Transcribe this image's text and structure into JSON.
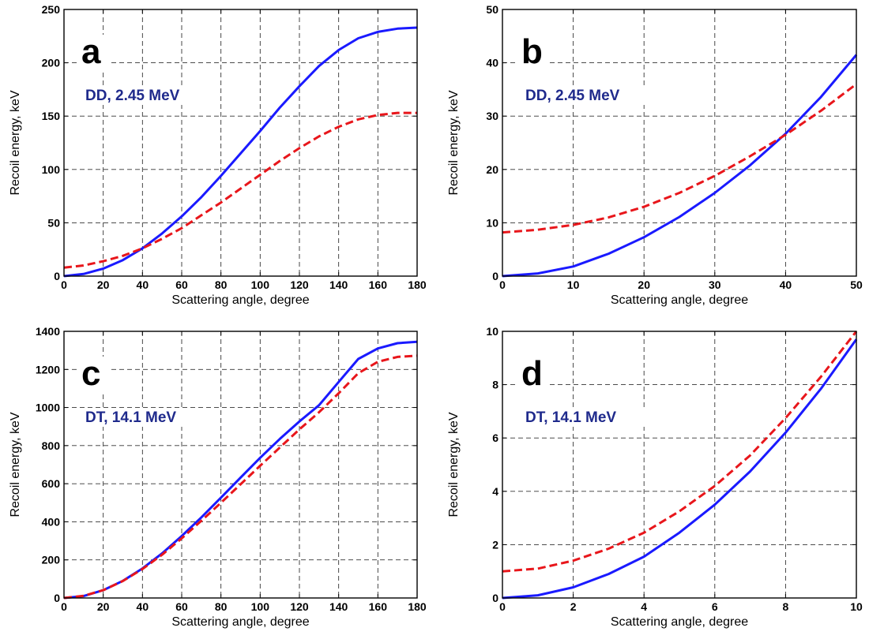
{
  "chart_data": [
    {
      "type": "line",
      "panel": "a",
      "annotation": "DD, 2.45 MeV",
      "xlabel": "Scattering angle, degree",
      "ylabel": "Recoil energy, keV",
      "xlim": [
        0,
        180
      ],
      "ylim": [
        0,
        250
      ],
      "xticks": [
        "0",
        "20",
        "40",
        "60",
        "80",
        "100",
        "120",
        "140",
        "160",
        "180"
      ],
      "yticks": [
        "0",
        "50",
        "100",
        "150",
        "200",
        "250"
      ],
      "grid": true,
      "series": [
        {
          "style": "solid",
          "color": "#1a1aff",
          "x": [
            0,
            10,
            20,
            30,
            40,
            50,
            60,
            70,
            80,
            90,
            100,
            110,
            120,
            130,
            140,
            150,
            160,
            170,
            180
          ],
          "y": [
            0,
            2,
            7,
            15,
            26,
            40,
            56,
            74,
            94,
            115,
            136,
            158,
            178,
            197,
            212,
            223,
            229,
            232,
            233
          ]
        },
        {
          "style": "dashed",
          "color": "#e8161b",
          "x": [
            0,
            10,
            20,
            30,
            40,
            50,
            60,
            70,
            80,
            90,
            100,
            110,
            120,
            130,
            140,
            150,
            160,
            170,
            180
          ],
          "y": [
            8,
            10,
            14,
            19,
            26,
            35,
            45,
            57,
            69,
            82,
            95,
            108,
            120,
            131,
            140,
            147,
            151,
            153,
            153
          ]
        }
      ]
    },
    {
      "type": "line",
      "panel": "b",
      "annotation": "DD, 2.45 MeV",
      "xlabel": "Scattering angle, degree",
      "ylabel": "Recoil energy, keV",
      "xlim": [
        0,
        50
      ],
      "ylim": [
        0,
        50
      ],
      "xticks": [
        "0",
        "10",
        "20",
        "30",
        "40",
        "50"
      ],
      "yticks": [
        "0",
        "10",
        "20",
        "30",
        "40",
        "50"
      ],
      "grid": true,
      "series": [
        {
          "style": "solid",
          "color": "#1a1aff",
          "x": [
            0,
            5,
            10,
            15,
            20,
            25,
            30,
            35,
            40,
            45,
            50
          ],
          "y": [
            0,
            0.5,
            1.8,
            4.2,
            7.3,
            11.1,
            15.6,
            20.8,
            26.7,
            33.6,
            41.5
          ]
        },
        {
          "style": "dashed",
          "color": "#e8161b",
          "x": [
            0,
            5,
            10,
            15,
            20,
            25,
            30,
            35,
            40,
            45,
            50
          ],
          "y": [
            8.2,
            8.7,
            9.6,
            11.0,
            13.0,
            15.6,
            18.8,
            22.5,
            26.5,
            31.0,
            36.0
          ]
        }
      ]
    },
    {
      "type": "line",
      "panel": "c",
      "annotation": "DT, 14.1 MeV",
      "xlabel": "Scattering angle, degree",
      "ylabel": "Recoil energy, keV",
      "xlim": [
        0,
        180
      ],
      "ylim": [
        0,
        1400
      ],
      "xticks": [
        "0",
        "20",
        "40",
        "60",
        "80",
        "100",
        "120",
        "140",
        "160",
        "180"
      ],
      "yticks": [
        "0",
        "200",
        "400",
        "600",
        "800",
        "1000",
        "1200",
        "1400"
      ],
      "grid": true,
      "series": [
        {
          "style": "solid",
          "color": "#1a1aff",
          "x": [
            0,
            10,
            20,
            30,
            40,
            50,
            60,
            70,
            80,
            90,
            100,
            110,
            120,
            130,
            140,
            150,
            160,
            170,
            180
          ],
          "y": [
            0,
            10,
            41,
            90,
            155,
            234,
            325,
            423,
            527,
            632,
            736,
            835,
            927,
            1012,
            1134,
            1255,
            1310,
            1338,
            1345
          ]
        },
        {
          "style": "dashed",
          "color": "#e8161b",
          "x": [
            0,
            10,
            20,
            30,
            40,
            50,
            60,
            70,
            80,
            90,
            100,
            110,
            120,
            130,
            140,
            150,
            160,
            170,
            180
          ],
          "y": [
            0,
            11,
            41,
            89,
            152,
            227,
            313,
            405,
            500,
            597,
            694,
            790,
            885,
            975,
            1075,
            1180,
            1240,
            1266,
            1272
          ]
        }
      ]
    },
    {
      "type": "line",
      "panel": "d",
      "annotation": "DT, 14.1 MeV",
      "xlabel": "Scattering angle, degree",
      "ylabel": "Recoil energy, keV",
      "xlim": [
        0,
        10
      ],
      "ylim": [
        0,
        10
      ],
      "xticks": [
        "0",
        "2",
        "4",
        "6",
        "8",
        "10"
      ],
      "yticks": [
        "0",
        "2",
        "4",
        "6",
        "8",
        "10"
      ],
      "grid": true,
      "series": [
        {
          "style": "solid",
          "color": "#1a1aff",
          "x": [
            0,
            1,
            2,
            3,
            4,
            5,
            6,
            7,
            8,
            9,
            10
          ],
          "y": [
            0,
            0.1,
            0.4,
            0.9,
            1.55,
            2.45,
            3.5,
            4.75,
            6.2,
            7.85,
            9.7
          ]
        },
        {
          "style": "dashed",
          "color": "#e8161b",
          "x": [
            0,
            1,
            2,
            3,
            4,
            5,
            6,
            7,
            8,
            9,
            10
          ],
          "y": [
            1.0,
            1.1,
            1.4,
            1.85,
            2.45,
            3.25,
            4.2,
            5.35,
            6.75,
            8.3,
            10.0
          ]
        }
      ]
    }
  ]
}
